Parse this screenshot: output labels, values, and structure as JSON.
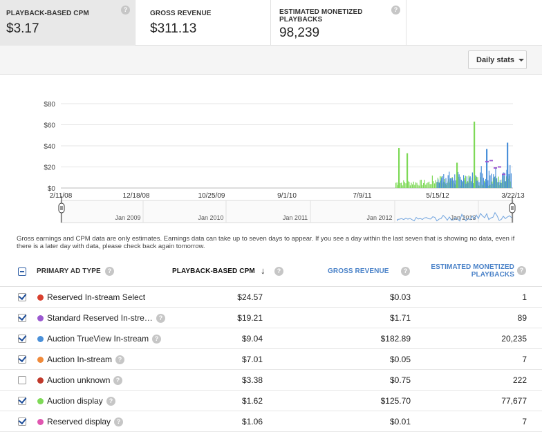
{
  "metrics": [
    {
      "title": "PLAYBACK-BASED CPM",
      "value": "$3.17"
    },
    {
      "title": "GROSS REVENUE",
      "value": "$311.13"
    },
    {
      "title": "ESTIMATED MONETIZED PLAYBACKS",
      "value": "98,239"
    }
  ],
  "help_glyph": "?",
  "toolbar": {
    "stats_label": "Daily stats"
  },
  "chart_data": {
    "type": "bar",
    "y_ticks": [
      "$80",
      "$60",
      "$40",
      "$20",
      "$0"
    ],
    "ylim": [
      0,
      80
    ],
    "x_ticks": [
      "2/11/08",
      "12/18/08",
      "10/25/09",
      "9/1/10",
      "7/9/11",
      "5/15/12",
      "3/22/13"
    ],
    "navigator_labels": [
      "Jan 2009",
      "Jan 2010",
      "Jan 2011",
      "Jan 2012",
      "Jan 2013"
    ],
    "series": [
      {
        "name": "Auction display",
        "color": "#7ed957",
        "peaks": [
          {
            "x": "12/2011",
            "y": 38
          },
          {
            "x": "2/2012",
            "y": 33
          },
          {
            "x": "12/2012",
            "y": 63
          },
          {
            "x": "10/2012",
            "y": 24
          }
        ]
      },
      {
        "name": "Auction TrueView In-stream",
        "color": "#4a90d9",
        "peaks": [
          {
            "x": "3/2013",
            "y": 43
          },
          {
            "x": "1/2013",
            "y": 37
          }
        ]
      },
      {
        "name": "Standard Reserved In-stream",
        "color": "#9b59d0",
        "peaks": [
          {
            "x": "2/2013",
            "y": 25
          }
        ]
      }
    ]
  },
  "note": "Gross earnings and CPM data are only estimates. Earnings data can take up to seven days to appear. If you see a day within the last seven that is showing no data, even if there is a later day with data, please check back again tomorrow.",
  "table": {
    "headers": {
      "type": "PRIMARY AD TYPE",
      "cpm": "PLAYBACK-BASED CPM",
      "sort_arrow": "↓",
      "revenue": "GROSS REVENUE",
      "plays_line1": "ESTIMATED MONETIZED",
      "plays_line2": "PLAYBACKS"
    },
    "rows": [
      {
        "name": "Reserved In-stream Select",
        "color": "#d9402f",
        "checked": true,
        "help": false,
        "cpm": "$24.57",
        "revenue": "$0.03",
        "plays": "1"
      },
      {
        "name": "Standard Reserved In-stre…",
        "color": "#9b59d0",
        "checked": true,
        "help": true,
        "cpm": "$19.21",
        "revenue": "$1.71",
        "plays": "89"
      },
      {
        "name": "Auction TrueView In-stream",
        "color": "#4a90d9",
        "checked": true,
        "help": true,
        "cpm": "$9.04",
        "revenue": "$182.89",
        "plays": "20,235"
      },
      {
        "name": "Auction In-stream",
        "color": "#f08a3a",
        "checked": true,
        "help": true,
        "cpm": "$7.01",
        "revenue": "$0.05",
        "plays": "7"
      },
      {
        "name": "Auction unknown",
        "color": "#c0392b",
        "checked": false,
        "help": true,
        "cpm": "$3.38",
        "revenue": "$0.75",
        "plays": "222"
      },
      {
        "name": "Auction display",
        "color": "#7ed957",
        "checked": true,
        "help": true,
        "cpm": "$1.62",
        "revenue": "$125.70",
        "plays": "77,677"
      },
      {
        "name": "Reserved display",
        "color": "#e056b0",
        "checked": true,
        "help": true,
        "cpm": "$1.06",
        "revenue": "$0.01",
        "plays": "7"
      }
    ]
  }
}
